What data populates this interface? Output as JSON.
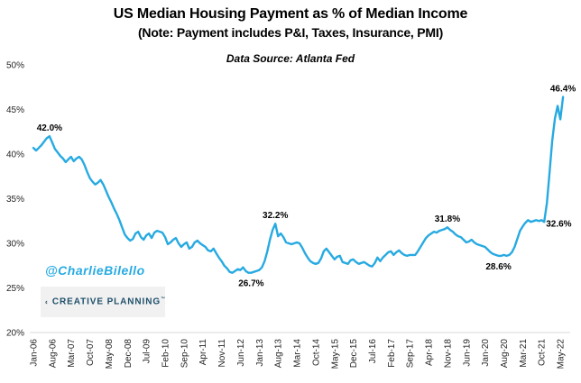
{
  "header": {
    "title": "US Median Housing Payment as % of Median Income",
    "subtitle": "(Note: Payment includes P&I, Taxes, Insurance, PMI)",
    "source": "Data Source: Atlanta Fed"
  },
  "watermark": {
    "handle": "@CharlieBilello",
    "logo_text": "CREATIVE PLANNING",
    "logo_mark": "™"
  },
  "colors": {
    "line": "#27aae1",
    "watermark_cyan": "#29abe2",
    "logo_navy": "#1d4f68",
    "logo_gold": "#c5a45c",
    "logo_bg": "#f1f1f2",
    "axis_line": "#d9d9d9",
    "tick_text": "#262626",
    "annotation_text": "#000000"
  },
  "chart_data": {
    "type": "line",
    "title": "US Median Housing Payment as % of Median Income",
    "note": "(Note: Payment includes P&I, Taxes, Insurance, PMI)",
    "source": "Data Source: Atlanta Fed",
    "xlabel": "",
    "ylabel": "",
    "ylim": [
      20,
      50
    ],
    "y_ticks": [
      50,
      45,
      40,
      35,
      30,
      25,
      20
    ],
    "y_tick_suffix": "%",
    "gridlines": false,
    "legend": false,
    "x_unit": "month",
    "x_start": "Jan-06",
    "x_end": "Jun-22",
    "x_tick_every": 7,
    "x_tick_labels": [
      "Jan-06",
      "Aug-06",
      "Mar-07",
      "Oct-07",
      "May-08",
      "Dec-08",
      "Jul-09",
      "Feb-10",
      "Sep-10",
      "Apr-11",
      "Nov-11",
      "Jun-12",
      "Jan-13",
      "Aug-13",
      "Mar-14",
      "Oct-14",
      "May-15",
      "Dec-15",
      "Jul-16",
      "Feb-17",
      "Sep-17",
      "Apr-18",
      "Nov-18",
      "Jun-19",
      "Jan-20",
      "Aug-20",
      "Mar-21",
      "Oct-21",
      "May-22"
    ],
    "series": [
      {
        "name": "US Median Housing Payment as % of Median Income",
        "values": [
          40.7,
          40.4,
          40.7,
          41.0,
          41.4,
          41.8,
          42.0,
          41.3,
          40.6,
          40.2,
          39.8,
          39.5,
          39.1,
          39.4,
          39.7,
          39.2,
          39.5,
          39.7,
          39.4,
          38.8,
          38.0,
          37.3,
          36.9,
          36.6,
          36.8,
          37.1,
          36.6,
          35.9,
          35.2,
          34.6,
          33.9,
          33.3,
          32.6,
          31.8,
          31.0,
          30.6,
          30.3,
          30.5,
          31.1,
          31.3,
          30.7,
          30.4,
          30.9,
          31.1,
          30.6,
          31.2,
          31.4,
          31.3,
          31.2,
          30.7,
          29.9,
          30.1,
          30.4,
          30.6,
          30.0,
          29.6,
          29.9,
          30.1,
          29.4,
          29.6,
          30.1,
          30.3,
          30.0,
          29.8,
          29.6,
          29.2,
          29.1,
          29.4,
          28.9,
          28.4,
          28.0,
          27.5,
          27.2,
          26.8,
          26.7,
          26.9,
          27.1,
          27.0,
          27.3,
          26.9,
          26.7,
          26.7,
          26.8,
          26.9,
          27.0,
          27.3,
          28.0,
          29.1,
          30.4,
          31.5,
          32.2,
          30.8,
          31.1,
          30.7,
          30.1,
          30.0,
          29.9,
          30.0,
          30.1,
          30.0,
          29.5,
          28.9,
          28.4,
          28.0,
          27.8,
          27.7,
          27.8,
          28.3,
          29.1,
          29.4,
          29.0,
          28.6,
          28.2,
          28.5,
          28.6,
          27.9,
          27.8,
          27.7,
          28.1,
          28.2,
          27.9,
          27.7,
          27.8,
          27.9,
          27.7,
          27.5,
          27.4,
          27.8,
          28.4,
          28.0,
          28.4,
          28.7,
          29.0,
          29.1,
          28.7,
          29.0,
          29.2,
          28.9,
          28.7,
          28.6,
          28.7,
          28.7,
          28.7,
          29.1,
          29.6,
          30.1,
          30.6,
          30.9,
          31.1,
          31.3,
          31.2,
          31.4,
          31.5,
          31.6,
          31.8,
          31.5,
          31.3,
          31.0,
          30.8,
          30.7,
          30.4,
          30.1,
          30.2,
          30.4,
          30.1,
          29.9,
          29.8,
          29.7,
          29.6,
          29.3,
          29.0,
          28.8,
          28.7,
          28.6,
          28.6,
          28.7,
          28.6,
          28.7,
          29.0,
          29.6,
          30.5,
          31.4,
          31.9,
          32.3,
          32.6,
          32.4,
          32.5,
          32.6,
          32.5,
          32.6,
          32.4,
          34.5,
          38.0,
          41.5,
          44.0,
          45.4,
          43.9,
          46.4
        ]
      }
    ],
    "annotations": [
      {
        "label": "42.0%",
        "index": 6,
        "month": "Jul-06",
        "value": 42.0,
        "side": "above"
      },
      {
        "label": "26.7%",
        "index": 81,
        "month": "Oct-12",
        "value": 26.7,
        "side": "below"
      },
      {
        "label": "32.2%",
        "index": 90,
        "month": "Jul-13",
        "value": 32.2,
        "side": "above"
      },
      {
        "label": "31.8%",
        "index": 154,
        "month": "Nov-18",
        "value": 31.8,
        "side": "above"
      },
      {
        "label": "28.6%",
        "index": 173,
        "month": "Jun-20",
        "value": 28.6,
        "side": "below"
      },
      {
        "label": "32.6%",
        "index": 189,
        "month": "Oct-21",
        "value": 32.6,
        "side": "right"
      },
      {
        "label": "46.4%",
        "index": 197,
        "month": "Jun-22",
        "value": 46.4,
        "side": "above"
      }
    ]
  }
}
